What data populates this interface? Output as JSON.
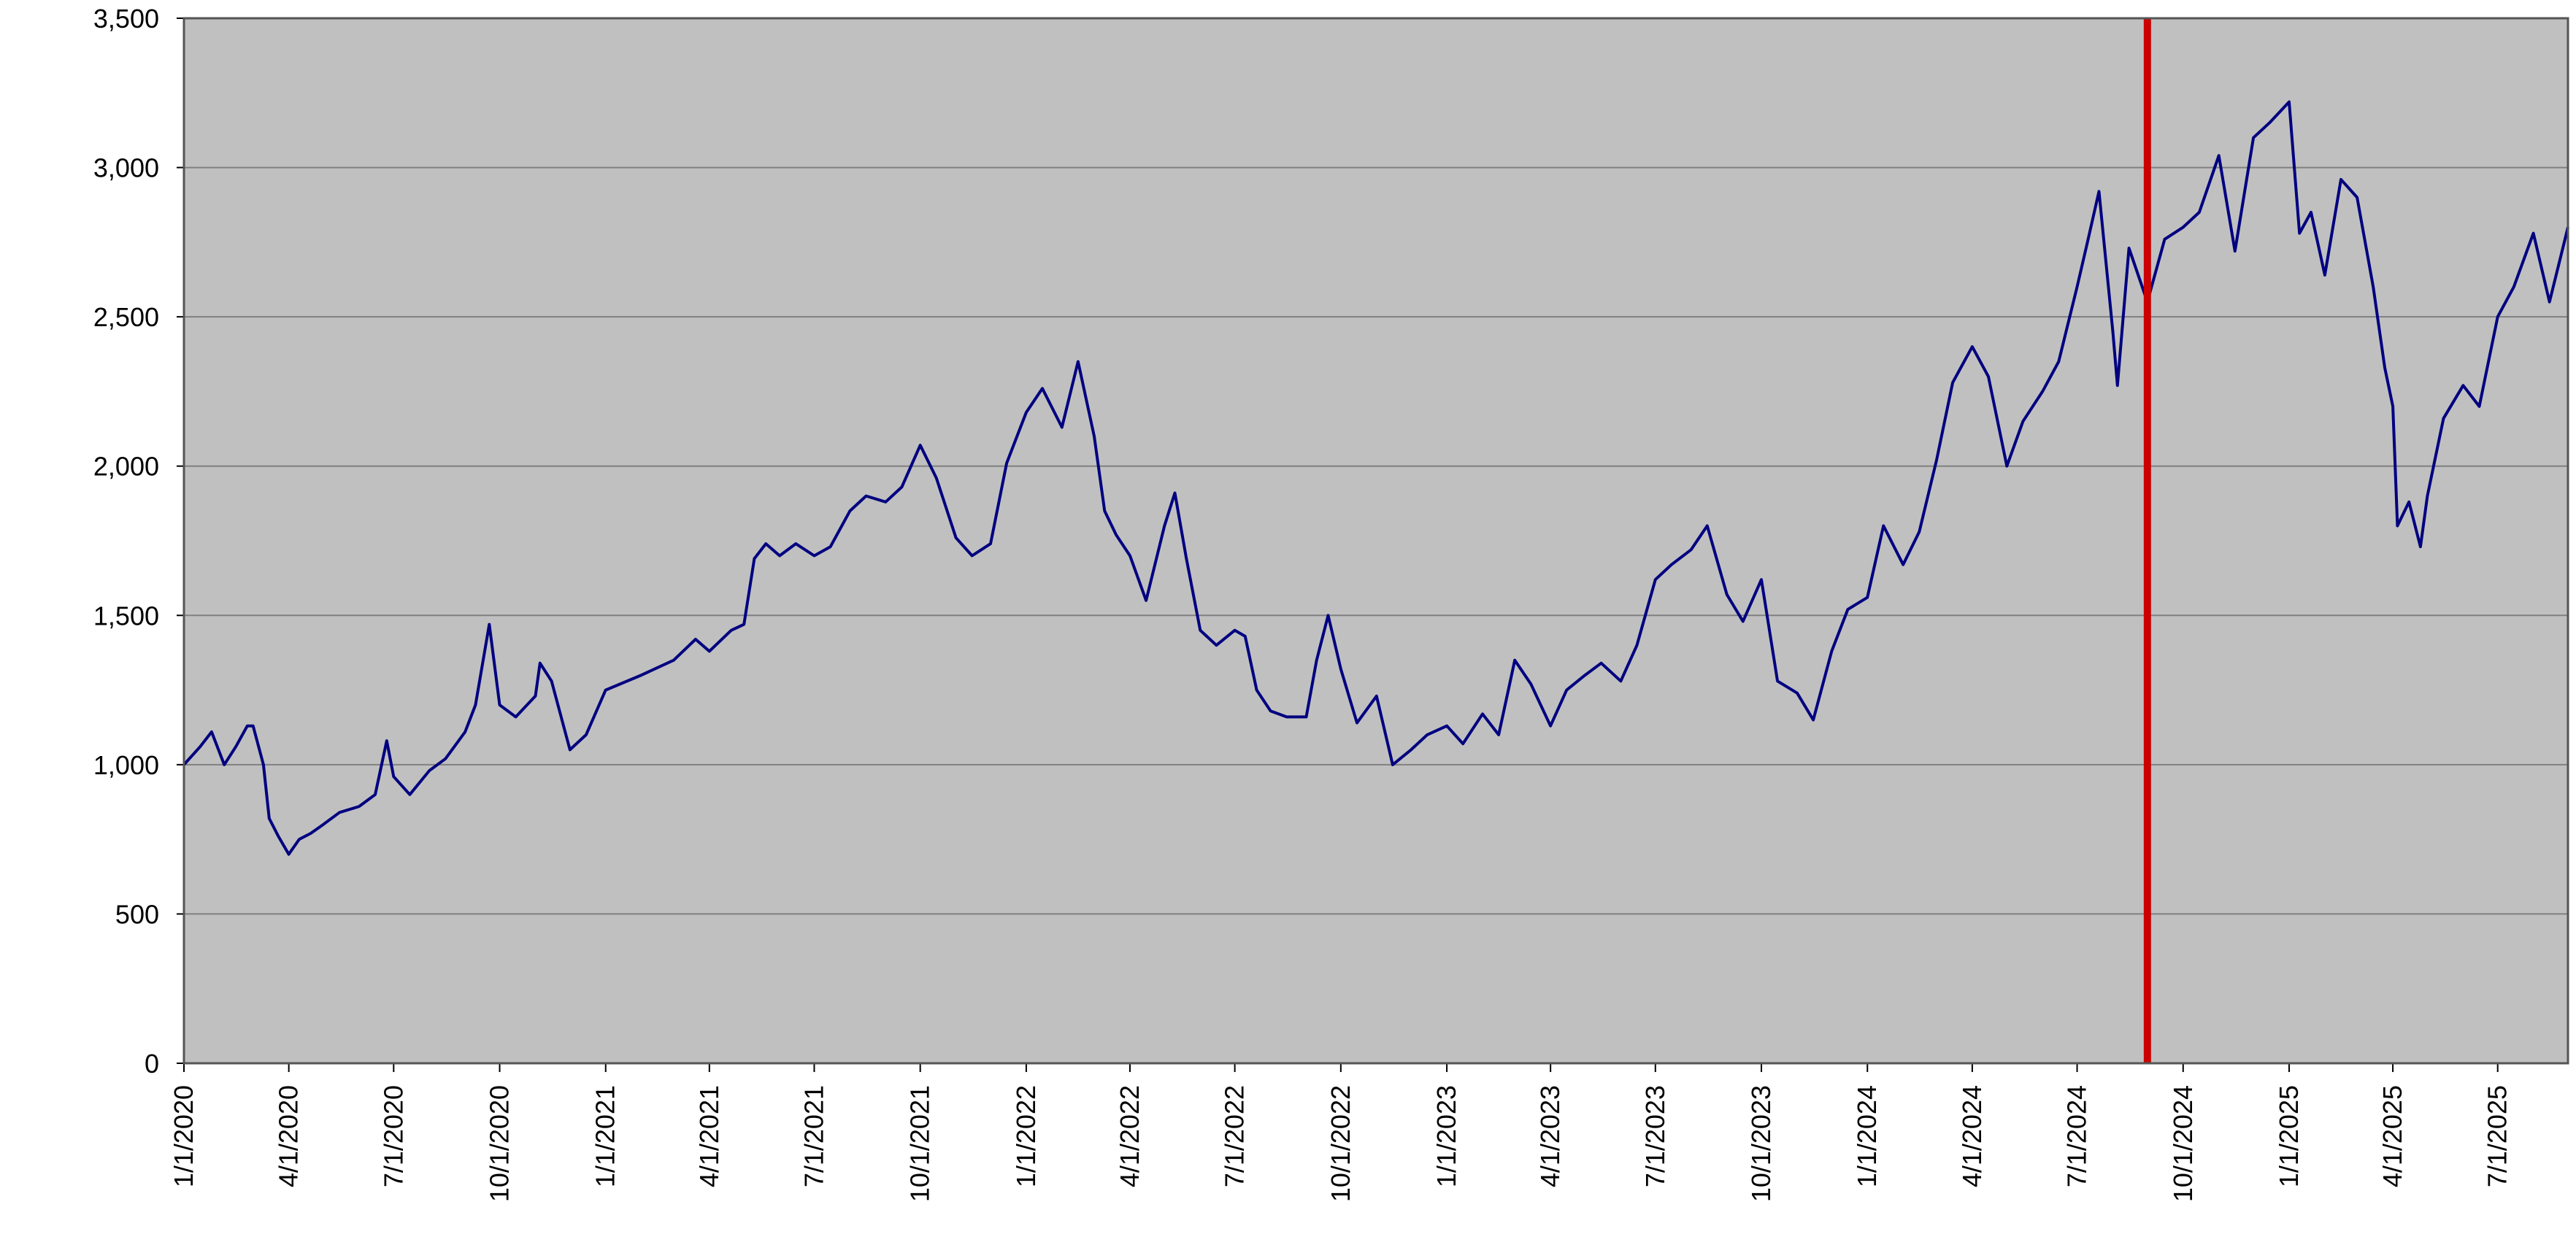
{
  "chart_data": {
    "type": "line",
    "title": "",
    "xlabel": "",
    "ylabel": "",
    "x_range": [
      "2020-01-01",
      "2025-08-31"
    ],
    "ylim": [
      0,
      3500
    ],
    "grid": true,
    "legend": "none",
    "y_ticks": [
      0,
      500,
      1000,
      1500,
      2000,
      2500,
      3000,
      3500
    ],
    "y_tick_labels": [
      "0",
      "500",
      "1,000",
      "1,500",
      "2,000",
      "2,500",
      "3,000",
      "3,500"
    ],
    "x_ticks": [
      "2020-01-01",
      "2020-04-01",
      "2020-07-01",
      "2020-10-01",
      "2021-01-01",
      "2021-04-01",
      "2021-07-01",
      "2021-10-01",
      "2022-01-01",
      "2022-04-01",
      "2022-07-01",
      "2022-10-01",
      "2023-01-01",
      "2023-04-01",
      "2023-07-01",
      "2023-10-01",
      "2024-01-01",
      "2024-04-01",
      "2024-07-01",
      "2024-10-01",
      "2025-01-01",
      "2025-04-01",
      "2025-07-01"
    ],
    "x_tick_labels": [
      "1/1/2020",
      "4/1/2020",
      "7/1/2020",
      "10/1/2020",
      "1/1/2021",
      "4/1/2021",
      "7/1/2021",
      "10/1/2021",
      "1/1/2022",
      "4/1/2022",
      "7/1/2022",
      "10/1/2022",
      "1/1/2023",
      "4/1/2023",
      "7/1/2023",
      "10/1/2023",
      "1/1/2024",
      "4/1/2024",
      "7/1/2024",
      "10/1/2024",
      "1/1/2025",
      "4/1/2025",
      "7/1/2025"
    ],
    "marker_line": {
      "x": "2024-08-31",
      "color": "#cc0000"
    },
    "colors": {
      "plot_background": "#c0c0c0",
      "series": "#000080",
      "grid": "#808080"
    },
    "series": [
      {
        "color": "#000080",
        "points": [
          [
            "2020-01-01",
            1000
          ],
          [
            "2020-01-15",
            1060
          ],
          [
            "2020-01-25",
            1110
          ],
          [
            "2020-02-05",
            1000
          ],
          [
            "2020-02-15",
            1060
          ],
          [
            "2020-02-25",
            1130
          ],
          [
            "2020-03-01",
            1130
          ],
          [
            "2020-03-10",
            1000
          ],
          [
            "2020-03-15",
            820
          ],
          [
            "2020-03-23",
            760
          ],
          [
            "2020-04-01",
            700
          ],
          [
            "2020-04-10",
            750
          ],
          [
            "2020-04-20",
            770
          ],
          [
            "2020-05-01",
            800
          ],
          [
            "2020-05-15",
            840
          ],
          [
            "2020-06-01",
            860
          ],
          [
            "2020-06-15",
            900
          ],
          [
            "2020-06-25",
            1080
          ],
          [
            "2020-07-01",
            960
          ],
          [
            "2020-07-15",
            900
          ],
          [
            "2020-08-01",
            980
          ],
          [
            "2020-08-15",
            1020
          ],
          [
            "2020-09-01",
            1110
          ],
          [
            "2020-09-10",
            1200
          ],
          [
            "2020-09-22",
            1470
          ],
          [
            "2020-10-01",
            1200
          ],
          [
            "2020-10-15",
            1160
          ],
          [
            "2020-11-01",
            1230
          ],
          [
            "2020-11-05",
            1340
          ],
          [
            "2020-11-15",
            1280
          ],
          [
            "2020-12-01",
            1050
          ],
          [
            "2020-12-15",
            1100
          ],
          [
            "2021-01-01",
            1250
          ],
          [
            "2021-02-01",
            1300
          ],
          [
            "2021-03-01",
            1350
          ],
          [
            "2021-03-20",
            1420
          ],
          [
            "2021-04-01",
            1380
          ],
          [
            "2021-04-20",
            1450
          ],
          [
            "2021-05-01",
            1470
          ],
          [
            "2021-05-10",
            1690
          ],
          [
            "2021-05-20",
            1740
          ],
          [
            "2021-06-01",
            1700
          ],
          [
            "2021-06-15",
            1740
          ],
          [
            "2021-07-01",
            1700
          ],
          [
            "2021-07-15",
            1730
          ],
          [
            "2021-08-01",
            1850
          ],
          [
            "2021-08-15",
            1900
          ],
          [
            "2021-09-01",
            1880
          ],
          [
            "2021-09-15",
            1930
          ],
          [
            "2021-10-01",
            2070
          ],
          [
            "2021-10-15",
            1960
          ],
          [
            "2021-11-01",
            1760
          ],
          [
            "2021-11-15",
            1700
          ],
          [
            "2021-12-01",
            1740
          ],
          [
            "2021-12-15",
            2010
          ],
          [
            "2022-01-01",
            2180
          ],
          [
            "2022-01-15",
            2260
          ],
          [
            "2022-02-01",
            2130
          ],
          [
            "2022-02-15",
            2350
          ],
          [
            "2022-03-01",
            2100
          ],
          [
            "2022-03-10",
            1850
          ],
          [
            "2022-03-20",
            1770
          ],
          [
            "2022-04-01",
            1700
          ],
          [
            "2022-04-15",
            1550
          ],
          [
            "2022-05-01",
            1800
          ],
          [
            "2022-05-10",
            1910
          ],
          [
            "2022-05-20",
            1690
          ],
          [
            "2022-06-01",
            1450
          ],
          [
            "2022-06-15",
            1400
          ],
          [
            "2022-07-01",
            1450
          ],
          [
            "2022-07-10",
            1430
          ],
          [
            "2022-07-20",
            1250
          ],
          [
            "2022-08-01",
            1180
          ],
          [
            "2022-08-15",
            1160
          ],
          [
            "2022-09-01",
            1160
          ],
          [
            "2022-09-10",
            1350
          ],
          [
            "2022-09-20",
            1500
          ],
          [
            "2022-10-01",
            1320
          ],
          [
            "2022-10-15",
            1140
          ],
          [
            "2022-11-01",
            1230
          ],
          [
            "2022-11-15",
            1000
          ],
          [
            "2022-12-01",
            1050
          ],
          [
            "2022-12-15",
            1100
          ],
          [
            "2023-01-01",
            1130
          ],
          [
            "2023-01-15",
            1070
          ],
          [
            "2023-02-01",
            1170
          ],
          [
            "2023-02-15",
            1100
          ],
          [
            "2023-03-01",
            1350
          ],
          [
            "2023-03-15",
            1270
          ],
          [
            "2023-04-01",
            1130
          ],
          [
            "2023-04-15",
            1250
          ],
          [
            "2023-05-01",
            1300
          ],
          [
            "2023-05-15",
            1340
          ],
          [
            "2023-06-01",
            1280
          ],
          [
            "2023-06-15",
            1400
          ],
          [
            "2023-07-01",
            1620
          ],
          [
            "2023-07-15",
            1670
          ],
          [
            "2023-08-01",
            1720
          ],
          [
            "2023-08-15",
            1800
          ],
          [
            "2023-09-01",
            1570
          ],
          [
            "2023-09-15",
            1480
          ],
          [
            "2023-10-01",
            1620
          ],
          [
            "2023-10-15",
            1280
          ],
          [
            "2023-11-01",
            1240
          ],
          [
            "2023-11-15",
            1150
          ],
          [
            "2023-12-01",
            1380
          ],
          [
            "2023-12-15",
            1520
          ],
          [
            "2024-01-01",
            1560
          ],
          [
            "2024-01-15",
            1800
          ],
          [
            "2024-02-01",
            1670
          ],
          [
            "2024-02-15",
            1780
          ],
          [
            "2024-03-01",
            2020
          ],
          [
            "2024-03-15",
            2280
          ],
          [
            "2024-04-01",
            2400
          ],
          [
            "2024-04-15",
            2300
          ],
          [
            "2024-05-01",
            2000
          ],
          [
            "2024-05-15",
            2150
          ],
          [
            "2024-06-01",
            2250
          ],
          [
            "2024-06-15",
            2350
          ],
          [
            "2024-07-01",
            2600
          ],
          [
            "2024-07-10",
            2750
          ],
          [
            "2024-07-20",
            2920
          ],
          [
            "2024-08-01",
            2450
          ],
          [
            "2024-08-05",
            2270
          ],
          [
            "2024-08-15",
            2730
          ],
          [
            "2024-08-31",
            2550
          ],
          [
            "2024-09-15",
            2760
          ],
          [
            "2024-10-01",
            2800
          ],
          [
            "2024-10-15",
            2850
          ],
          [
            "2024-11-01",
            3040
          ],
          [
            "2024-11-15",
            2720
          ],
          [
            "2024-12-01",
            3100
          ],
          [
            "2024-12-15",
            3150
          ],
          [
            "2025-01-01",
            3220
          ],
          [
            "2025-01-10",
            2780
          ],
          [
            "2025-01-20",
            2850
          ],
          [
            "2025-02-01",
            2640
          ],
          [
            "2025-02-15",
            2960
          ],
          [
            "2025-03-01",
            2900
          ],
          [
            "2025-03-15",
            2600
          ],
          [
            "2025-03-25",
            2330
          ],
          [
            "2025-04-01",
            2200
          ],
          [
            "2025-04-05",
            1800
          ],
          [
            "2025-04-15",
            1880
          ],
          [
            "2025-04-25",
            1730
          ],
          [
            "2025-05-01",
            1900
          ],
          [
            "2025-05-15",
            2160
          ],
          [
            "2025-06-01",
            2270
          ],
          [
            "2025-06-15",
            2200
          ],
          [
            "2025-07-01",
            2500
          ],
          [
            "2025-07-15",
            2600
          ],
          [
            "2025-08-01",
            2780
          ],
          [
            "2025-08-15",
            2550
          ],
          [
            "2025-08-31",
            2800
          ]
        ]
      }
    ]
  }
}
